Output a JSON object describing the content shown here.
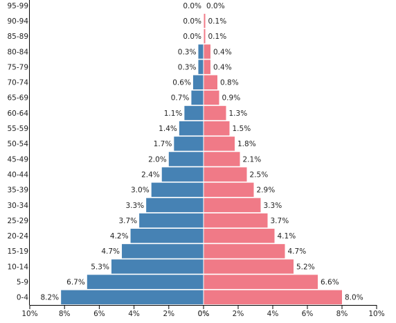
{
  "chart_data": {
    "type": "bar",
    "orientation": "horizontal",
    "subtype": "population-pyramid",
    "categories": [
      "95-99",
      "90-94",
      "85-89",
      "80-84",
      "75-79",
      "70-74",
      "65-69",
      "60-64",
      "55-59",
      "50-54",
      "45-49",
      "40-44",
      "35-39",
      "30-34",
      "25-29",
      "20-24",
      "15-19",
      "10-14",
      "5-9",
      "0-4"
    ],
    "series": [
      {
        "side": "left",
        "color": "#4682b4",
        "values": [
          0.0,
          0.0,
          0.0,
          0.3,
          0.3,
          0.6,
          0.7,
          1.1,
          1.4,
          1.7,
          2.0,
          2.4,
          3.0,
          3.3,
          3.7,
          4.2,
          4.7,
          5.3,
          6.7,
          8.2
        ],
        "labels": [
          "0.0%",
          "0.0%",
          "0.0%",
          "0.3%",
          "0.3%",
          "0.6%",
          "0.7%",
          "1.1%",
          "1.4%",
          "1.7%",
          "2.0%",
          "2.4%",
          "3.0%",
          "3.3%",
          "3.7%",
          "4.2%",
          "4.7%",
          "5.3%",
          "6.7%",
          "8.2%"
        ]
      },
      {
        "side": "right",
        "color": "#f07a87",
        "values": [
          0.0,
          0.1,
          0.1,
          0.4,
          0.4,
          0.8,
          0.9,
          1.3,
          1.5,
          1.8,
          2.1,
          2.5,
          2.9,
          3.3,
          3.7,
          4.1,
          4.7,
          5.2,
          6.6,
          8.0
        ],
        "labels": [
          "0.0%",
          "0.1%",
          "0.1%",
          "0.4%",
          "0.4%",
          "0.8%",
          "0.9%",
          "1.3%",
          "1.5%",
          "1.8%",
          "2.1%",
          "2.5%",
          "2.9%",
          "3.3%",
          "3.7%",
          "4.1%",
          "4.7%",
          "5.2%",
          "6.6%",
          "8.0%"
        ]
      }
    ],
    "xlim": [
      0,
      10
    ],
    "left_ticks": [
      "10%",
      "8%",
      "6%",
      "4%",
      "2%",
      "0%"
    ],
    "right_ticks": [
      "0%",
      "2%",
      "4%",
      "6%",
      "8%",
      "10%"
    ],
    "title": "",
    "xlabel": "",
    "ylabel": "",
    "grid": false,
    "legend": "none"
  }
}
